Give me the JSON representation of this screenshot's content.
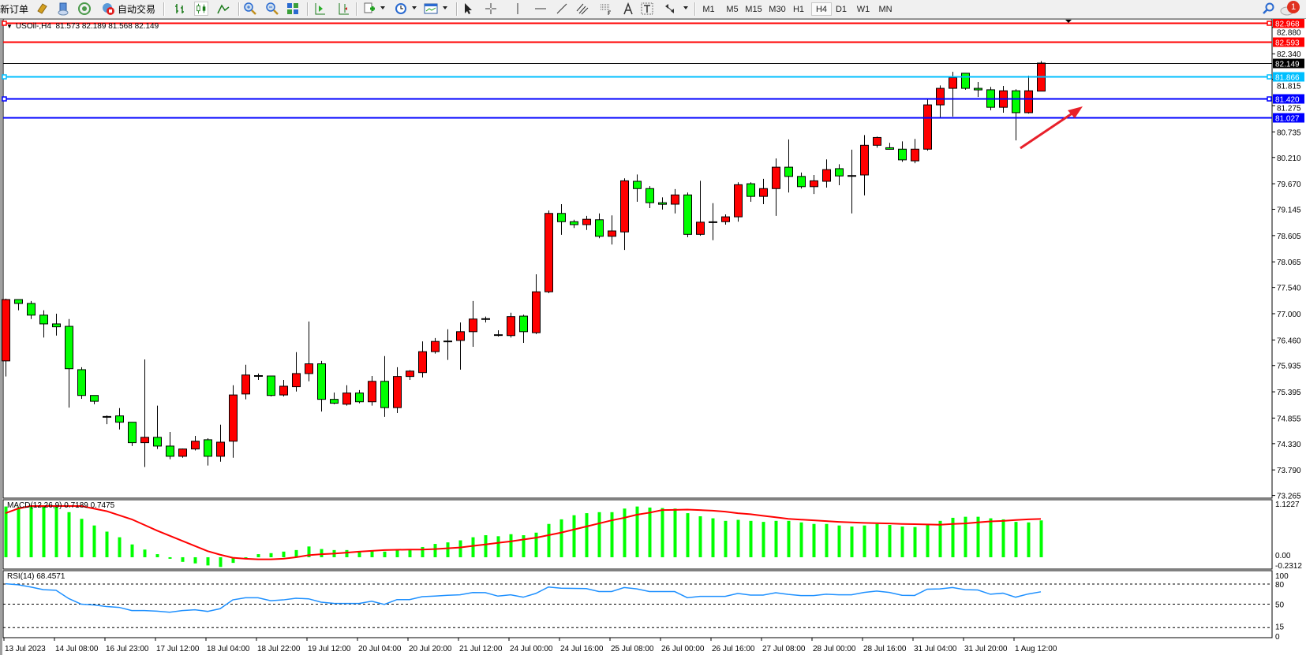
{
  "toolbar": {
    "new_order": "新订单",
    "auto_trading": "自动交易",
    "timeframes": [
      "M1",
      "M5",
      "M15",
      "M30",
      "H1",
      "H4",
      "D1",
      "W1",
      "MN"
    ],
    "active_timeframe": "H4",
    "notification_count": "1",
    "icons": [
      "market-watch-icon",
      "data-window-icon",
      "navigator-icon",
      "auto-trading-icon",
      "bar-chart-icon",
      "candlestick-icon",
      "line-chart-icon",
      "zoom-in-icon",
      "zoom-out-icon",
      "tile-windows-icon",
      "auto-scroll-icon",
      "chart-shift-icon",
      "indicators-icon",
      "periods-icon",
      "templates-icon",
      "cursor-icon",
      "crosshair-icon",
      "vertical-line-icon",
      "horizontal-line-icon",
      "trendline-icon",
      "equidistant-channel-icon",
      "fibonacci-icon",
      "text-icon",
      "text-label-icon",
      "arrows-icon",
      "search-icon",
      "notification-icon"
    ]
  },
  "chart": {
    "title": "USOil-,H4  81.573 82.189 81.568 82.149",
    "macd_label": "MACD(12,26,9) 0.7189 0.7475",
    "rsi_label": "RSI(14) 68.4571",
    "colors": {
      "bull": "#ff0000",
      "bear": "#00ff00",
      "macd_hist": "#00ff00",
      "macd_signal": "#ff0000",
      "rsi": "#1e90ff",
      "arrow": "#e8202a"
    },
    "price_levels": [
      {
        "value": "82.968",
        "color": "#ff0000",
        "text_color": "#ffffff",
        "markers": true
      },
      {
        "value": "82.593",
        "color": "#ff0000",
        "text_color": "#ffffff",
        "markers": false
      },
      {
        "value": "82.149",
        "color": "#000000",
        "text_color": "#ffffff",
        "markers": false,
        "thin": true
      },
      {
        "value": "81.866",
        "color": "#00bfff",
        "text_color": "#ffffff",
        "markers": true
      },
      {
        "value": "81.420",
        "color": "#0000ff",
        "text_color": "#ffffff",
        "markers": true
      },
      {
        "value": "81.027",
        "color": "#0000ff",
        "text_color": "#ffffff",
        "markers": false
      }
    ]
  },
  "chart_data": {
    "type": "candlestick",
    "symbol": "USOil-",
    "timeframe": "H4",
    "ylim": [
      73.21,
      83.04
    ],
    "price_ticks": [
      "82.880",
      "82.340",
      "81.815",
      "81.275",
      "80.735",
      "80.210",
      "79.670",
      "79.145",
      "78.605",
      "78.065",
      "77.540",
      "77.000",
      "76.460",
      "75.935",
      "75.395",
      "74.855",
      "74.330",
      "73.790",
      "73.265"
    ],
    "time_labels": [
      "13 Jul 2023",
      "14 Jul 08:00",
      "16 Jul 23:00",
      "17 Jul 12:00",
      "18 Jul 04:00",
      "18 Jul 22:00",
      "19 Jul 12:00",
      "20 Jul 04:00",
      "20 Jul 20:00",
      "21 Jul 12:00",
      "24 Jul 00:00",
      "24 Jul 16:00",
      "25 Jul 08:00",
      "26 Jul 00:00",
      "26 Jul 16:00",
      "27 Jul 08:00",
      "28 Jul 00:00",
      "28 Jul 16:00",
      "31 Jul 04:00",
      "31 Jul 20:00",
      "1 Aug 12:00"
    ],
    "candles_ohlc": [
      [
        76.03,
        77.31,
        75.71,
        77.29
      ],
      [
        77.29,
        77.29,
        77.07,
        77.21
      ],
      [
        77.21,
        77.26,
        76.89,
        76.97
      ],
      [
        76.97,
        77.07,
        76.51,
        76.79
      ],
      [
        76.79,
        77.0,
        76.55,
        76.73
      ],
      [
        76.74,
        76.89,
        75.07,
        75.87
      ],
      [
        75.85,
        75.9,
        75.25,
        75.32
      ],
      [
        75.32,
        75.32,
        75.14,
        75.2
      ],
      [
        74.86,
        74.91,
        74.73,
        74.88
      ],
      [
        74.9,
        75.06,
        74.62,
        74.77
      ],
      [
        74.77,
        74.77,
        74.28,
        74.35
      ],
      [
        74.35,
        76.06,
        73.85,
        74.46
      ],
      [
        74.46,
        75.11,
        74.22,
        74.28
      ],
      [
        74.28,
        74.57,
        74.01,
        74.07
      ],
      [
        74.07,
        74.23,
        74.04,
        74.22
      ],
      [
        74.22,
        74.49,
        74.19,
        74.38
      ],
      [
        74.41,
        74.44,
        73.88,
        74.07
      ],
      [
        74.07,
        74.72,
        73.96,
        74.36
      ],
      [
        74.38,
        75.53,
        74.04,
        75.33
      ],
      [
        75.35,
        75.95,
        75.24,
        75.74
      ],
      [
        75.72,
        75.77,
        75.64,
        75.72
      ],
      [
        75.72,
        75.72,
        75.3,
        75.32
      ],
      [
        75.33,
        75.64,
        75.3,
        75.51
      ],
      [
        75.5,
        76.21,
        75.4,
        75.77
      ],
      [
        75.77,
        76.84,
        75.61,
        75.97
      ],
      [
        75.97,
        76.03,
        74.99,
        75.24
      ],
      [
        75.24,
        75.38,
        75.14,
        75.16
      ],
      [
        75.14,
        75.53,
        75.11,
        75.37
      ],
      [
        75.37,
        75.43,
        75.16,
        75.19
      ],
      [
        75.19,
        75.72,
        75.11,
        75.61
      ],
      [
        75.61,
        76.13,
        74.88,
        75.07
      ],
      [
        75.07,
        75.9,
        74.96,
        75.71
      ],
      [
        75.71,
        75.84,
        75.64,
        75.82
      ],
      [
        75.79,
        76.43,
        75.69,
        76.22
      ],
      [
        76.22,
        76.5,
        76.18,
        76.43
      ],
      [
        76.43,
        76.68,
        76.05,
        76.43
      ],
      [
        76.45,
        76.82,
        75.85,
        76.63
      ],
      [
        76.63,
        77.26,
        76.32,
        76.89
      ],
      [
        76.89,
        76.94,
        76.82,
        76.89
      ],
      [
        76.56,
        76.66,
        76.53,
        76.56
      ],
      [
        76.55,
        77.02,
        76.51,
        76.94
      ],
      [
        76.95,
        76.98,
        76.4,
        76.63
      ],
      [
        76.61,
        77.81,
        76.58,
        77.45
      ],
      [
        77.45,
        79.12,
        77.42,
        79.06
      ],
      [
        79.06,
        79.25,
        78.62,
        78.89
      ],
      [
        78.89,
        78.93,
        78.76,
        78.83
      ],
      [
        78.83,
        79.01,
        78.72,
        78.94
      ],
      [
        78.93,
        79.06,
        78.55,
        78.59
      ],
      [
        78.59,
        79.02,
        78.42,
        78.7
      ],
      [
        78.68,
        79.78,
        78.31,
        79.73
      ],
      [
        79.72,
        79.86,
        79.3,
        79.57
      ],
      [
        79.57,
        79.62,
        79.17,
        79.28
      ],
      [
        79.28,
        79.39,
        79.14,
        79.25
      ],
      [
        79.25,
        79.56,
        79.06,
        79.44
      ],
      [
        79.44,
        79.49,
        78.57,
        78.63
      ],
      [
        78.63,
        79.73,
        78.6,
        78.88
      ],
      [
        78.88,
        79.27,
        78.51,
        78.88
      ],
      [
        78.89,
        79.04,
        78.83,
        78.99
      ],
      [
        78.99,
        79.7,
        78.89,
        79.65
      ],
      [
        79.67,
        79.7,
        79.3,
        79.41
      ],
      [
        79.41,
        79.77,
        79.25,
        79.57
      ],
      [
        79.57,
        80.19,
        79.01,
        80.01
      ],
      [
        80.01,
        80.58,
        79.49,
        79.82
      ],
      [
        79.82,
        79.9,
        79.57,
        79.61
      ],
      [
        79.61,
        79.85,
        79.46,
        79.73
      ],
      [
        79.72,
        80.17,
        79.59,
        79.96
      ],
      [
        79.98,
        80.07,
        79.64,
        79.83
      ],
      [
        79.83,
        80.37,
        79.06,
        79.83
      ],
      [
        79.85,
        80.67,
        79.43,
        80.46
      ],
      [
        80.46,
        80.64,
        80.41,
        80.62
      ],
      [
        80.41,
        80.51,
        80.38,
        80.38
      ],
      [
        80.38,
        80.54,
        80.12,
        80.16
      ],
      [
        80.14,
        80.59,
        80.09,
        80.38
      ],
      [
        80.38,
        81.4,
        80.35,
        81.29
      ],
      [
        81.29,
        81.69,
        81.01,
        81.63
      ],
      [
        81.63,
        81.97,
        81.05,
        81.85
      ],
      [
        81.94,
        81.94,
        81.6,
        81.63
      ],
      [
        81.63,
        81.76,
        81.45,
        81.6
      ],
      [
        81.6,
        81.66,
        81.18,
        81.24
      ],
      [
        81.24,
        81.68,
        81.13,
        81.58
      ],
      [
        81.58,
        81.61,
        80.56,
        81.13
      ],
      [
        81.13,
        81.89,
        81.11,
        81.58
      ],
      [
        81.573,
        82.189,
        81.568,
        82.149
      ]
    ],
    "macd": {
      "ylim": [
        -0.2312,
        1.1227
      ],
      "axis_labels": [
        "1.1227",
        "0.00",
        "-0.2312"
      ],
      "histogram": [
        0.99,
        0.98,
        1.01,
        1.01,
        0.99,
        0.88,
        0.75,
        0.62,
        0.5,
        0.39,
        0.25,
        0.15,
        0.06,
        -0.03,
        -0.09,
        -0.12,
        -0.16,
        -0.19,
        -0.11,
        -0.02,
        0.06,
        0.08,
        0.11,
        0.14,
        0.21,
        0.16,
        0.14,
        0.14,
        0.11,
        0.12,
        0.11,
        0.14,
        0.14,
        0.2,
        0.26,
        0.29,
        0.33,
        0.39,
        0.43,
        0.41,
        0.45,
        0.43,
        0.48,
        0.65,
        0.74,
        0.82,
        0.86,
        0.88,
        0.88,
        0.95,
        0.99,
        0.97,
        0.96,
        0.95,
        0.86,
        0.8,
        0.76,
        0.71,
        0.73,
        0.71,
        0.69,
        0.71,
        0.71,
        0.68,
        0.65,
        0.65,
        0.62,
        0.6,
        0.62,
        0.65,
        0.63,
        0.6,
        0.59,
        0.65,
        0.71,
        0.77,
        0.79,
        0.79,
        0.76,
        0.74,
        0.69,
        0.68,
        0.7189
      ],
      "signal": [
        0.86,
        0.95,
        1.0,
        1.0,
        1.0,
        1.0,
        1.0,
        0.95,
        0.9,
        0.82,
        0.74,
        0.63,
        0.52,
        0.42,
        0.32,
        0.22,
        0.12,
        0.05,
        -0.01,
        -0.03,
        -0.04,
        -0.04,
        -0.03,
        0.0,
        0.04,
        0.06,
        0.07,
        0.09,
        0.11,
        0.125,
        0.14,
        0.145,
        0.15,
        0.15,
        0.16,
        0.175,
        0.19,
        0.22,
        0.25,
        0.28,
        0.31,
        0.345,
        0.38,
        0.43,
        0.48,
        0.54,
        0.6,
        0.66,
        0.72,
        0.77,
        0.83,
        0.87,
        0.92,
        0.925,
        0.93,
        0.92,
        0.91,
        0.89,
        0.86,
        0.84,
        0.81,
        0.78,
        0.75,
        0.735,
        0.72,
        0.705,
        0.69,
        0.68,
        0.67,
        0.665,
        0.66,
        0.65,
        0.645,
        0.64,
        0.635,
        0.65,
        0.66,
        0.68,
        0.7,
        0.71,
        0.727,
        0.74,
        0.7475
      ]
    },
    "rsi": {
      "ylim": [
        0,
        100
      ],
      "axis_labels": [
        "100",
        "80",
        "50",
        "15",
        "0"
      ],
      "levels": [
        80,
        50,
        15
      ],
      "values": [
        80.4,
        79,
        75.6,
        71.6,
        70.8,
        58.4,
        50,
        48.8,
        46.4,
        45.2,
        40.4,
        40.4,
        39.6,
        38,
        40.4,
        41.6,
        39.2,
        43.2,
        56.4,
        59.6,
        59.6,
        55.2,
        56.4,
        58.8,
        58,
        53,
        51.2,
        51,
        51,
        54.4,
        49.6,
        56.8,
        56.8,
        61.2,
        62,
        63.2,
        64,
        67.4,
        67.2,
        62,
        64,
        60.4,
        66,
        75.6,
        73.8,
        73.6,
        73.2,
        68.8,
        68.8,
        74.8,
        72.8,
        68.8,
        68.8,
        68.8,
        59.6,
        61.6,
        61.6,
        61.6,
        66,
        63.6,
        63.6,
        67,
        64.5,
        62.8,
        62.8,
        64.8,
        64,
        64,
        67.5,
        69.5,
        67.5,
        63.2,
        63,
        72.4,
        72.8,
        74.8,
        71.6,
        71.2,
        64.8,
        66.4,
        60.4,
        65.2,
        68.4571
      ]
    }
  }
}
